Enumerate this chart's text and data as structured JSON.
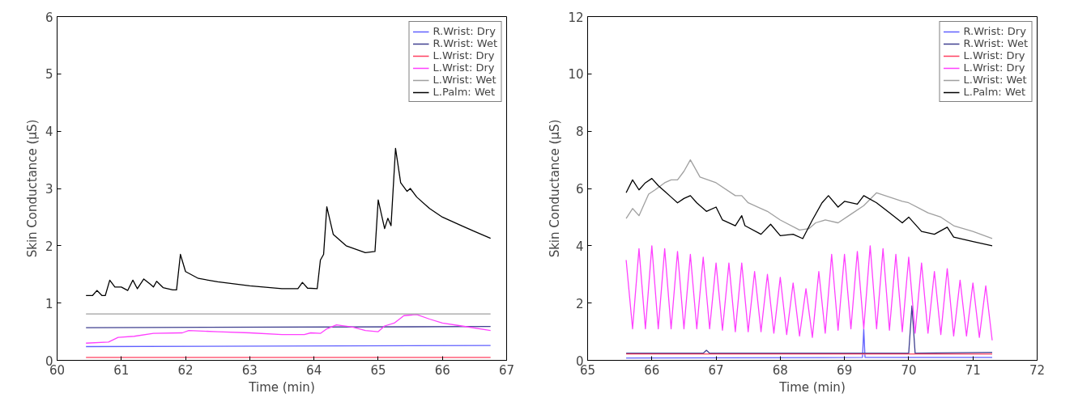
{
  "chart_data": [
    {
      "type": "line",
      "xlabel": "Time (min)",
      "ylabel": "Skin Conductance (μS)",
      "xlim": [
        60,
        67
      ],
      "ylim": [
        0,
        6
      ],
      "xticks": [
        60,
        61,
        62,
        63,
        64,
        65,
        66,
        67
      ],
      "yticks": [
        0,
        1,
        2,
        3,
        4,
        5,
        6
      ],
      "legend": "top right",
      "grid": false,
      "series": [
        {
          "name": "R.Wrist: Dry",
          "color": "#6060ff",
          "x": [
            60.45,
            66.75
          ],
          "values": [
            0.24,
            0.26
          ]
        },
        {
          "name": "R.Wrist: Wet",
          "color": "#404090",
          "x": [
            60.45,
            66.75
          ],
          "values": [
            0.57,
            0.59
          ]
        },
        {
          "name": "L.Wrist: Dry",
          "color": "#ff4060",
          "x": [
            60.45,
            66.75
          ],
          "values": [
            0.05,
            0.05
          ]
        },
        {
          "name": "L.Wrist: Dry",
          "color": "#ff40ff",
          "x": [
            60.45,
            60.8,
            60.95,
            61.2,
            61.5,
            61.95,
            62.05,
            62.5,
            63.0,
            63.5,
            63.85,
            63.95,
            64.1,
            64.2,
            64.35,
            64.6,
            64.8,
            65.0,
            65.1,
            65.25,
            65.4,
            65.6,
            65.8,
            66.0,
            66.3,
            66.75
          ],
          "values": [
            0.3,
            0.32,
            0.4,
            0.42,
            0.47,
            0.48,
            0.52,
            0.5,
            0.48,
            0.45,
            0.45,
            0.48,
            0.47,
            0.55,
            0.62,
            0.58,
            0.52,
            0.5,
            0.6,
            0.65,
            0.78,
            0.8,
            0.72,
            0.65,
            0.6,
            0.52
          ]
        },
        {
          "name": "L.Wrist: Wet",
          "color": "#a0a0a0",
          "x": [
            60.45,
            66.75
          ],
          "values": [
            0.81,
            0.81
          ]
        },
        {
          "name": "L.Palm: Wet",
          "color": "#000000",
          "x": [
            60.45,
            60.55,
            60.62,
            60.7,
            60.75,
            60.82,
            60.9,
            61.0,
            61.1,
            61.18,
            61.25,
            61.35,
            61.45,
            61.5,
            61.55,
            61.65,
            61.8,
            61.86,
            61.92,
            62.0,
            62.2,
            62.5,
            63.0,
            63.5,
            63.75,
            63.82,
            63.9,
            64.05,
            64.1,
            64.15,
            64.2,
            64.3,
            64.5,
            64.8,
            64.95,
            65.0,
            65.05,
            65.1,
            65.15,
            65.2,
            65.27,
            65.35,
            65.45,
            65.5,
            65.6,
            65.8,
            66.0,
            66.3,
            66.5,
            66.75
          ],
          "values": [
            1.13,
            1.13,
            1.22,
            1.13,
            1.13,
            1.4,
            1.28,
            1.28,
            1.22,
            1.4,
            1.25,
            1.42,
            1.33,
            1.28,
            1.38,
            1.27,
            1.23,
            1.23,
            1.85,
            1.55,
            1.43,
            1.37,
            1.3,
            1.25,
            1.25,
            1.36,
            1.26,
            1.25,
            1.75,
            1.85,
            2.68,
            2.2,
            2.0,
            1.88,
            1.9,
            2.8,
            2.55,
            2.3,
            2.48,
            2.35,
            3.7,
            3.1,
            2.95,
            3.0,
            2.85,
            2.65,
            2.5,
            2.35,
            2.25,
            2.13
          ]
        }
      ]
    },
    {
      "type": "line",
      "xlabel": "Time (min)",
      "ylabel": "Skin Conductance (μS)",
      "xlim": [
        65,
        72
      ],
      "ylim": [
        0,
        12
      ],
      "xticks": [
        65,
        66,
        67,
        68,
        69,
        70,
        71,
        72
      ],
      "yticks": [
        0,
        2,
        4,
        6,
        8,
        10,
        12
      ],
      "legend": "top right",
      "grid": false,
      "series": [
        {
          "name": "R.Wrist: Dry",
          "color": "#6060ff",
          "x": [
            65.6,
            69.28,
            69.3,
            69.32,
            71.3
          ],
          "values": [
            0.08,
            0.1,
            1.1,
            0.1,
            0.1
          ]
        },
        {
          "name": "R.Wrist: Wet",
          "color": "#404090",
          "x": [
            65.6,
            66.8,
            66.85,
            66.9,
            70.0,
            70.05,
            70.1,
            71.3
          ],
          "values": [
            0.25,
            0.25,
            0.35,
            0.25,
            0.25,
            1.9,
            0.25,
            0.28
          ]
        },
        {
          "name": "L.Wrist: Dry",
          "color": "#ff4060",
          "x": [
            65.6,
            71.3
          ],
          "values": [
            0.22,
            0.22
          ]
        },
        {
          "name": "L.Wrist: Dry",
          "color": "#ff40ff",
          "x": [
            65.6,
            65.7,
            65.8,
            65.9,
            66.0,
            66.1,
            66.2,
            66.3,
            66.4,
            66.5,
            66.6,
            66.7,
            66.8,
            66.9,
            67.0,
            67.1,
            67.2,
            67.3,
            67.4,
            67.5,
            67.6,
            67.7,
            67.8,
            67.9,
            68.0,
            68.1,
            68.2,
            68.3,
            68.4,
            68.5,
            68.6,
            68.7,
            68.8,
            68.9,
            69.0,
            69.1,
            69.2,
            69.3,
            69.4,
            69.5,
            69.6,
            69.7,
            69.8,
            69.9,
            70.0,
            70.1,
            70.2,
            70.3,
            70.4,
            70.5,
            70.6,
            70.7,
            70.8,
            70.9,
            71.0,
            71.1,
            71.2,
            71.3
          ],
          "values": [
            3.5,
            1.1,
            3.9,
            1.1,
            4.0,
            1.1,
            3.9,
            1.1,
            3.8,
            1.1,
            3.7,
            1.1,
            3.6,
            1.1,
            3.4,
            1.05,
            3.4,
            1.0,
            3.4,
            1.0,
            3.1,
            1.0,
            3.0,
            0.95,
            2.9,
            0.9,
            2.7,
            0.85,
            2.5,
            0.8,
            3.1,
            0.95,
            3.7,
            1.05,
            3.7,
            1.1,
            3.8,
            1.1,
            4.0,
            1.1,
            3.9,
            1.05,
            3.7,
            1.0,
            3.6,
            0.95,
            3.4,
            0.95,
            3.1,
            0.9,
            3.2,
            0.85,
            2.8,
            0.85,
            2.7,
            0.8,
            2.6,
            0.7
          ]
        },
        {
          "name": "L.Wrist: Wet",
          "color": "#a0a0a0",
          "x": [
            65.6,
            65.7,
            65.8,
            65.95,
            66.05,
            66.2,
            66.3,
            66.4,
            66.5,
            66.6,
            66.65,
            66.75,
            67.0,
            67.3,
            67.4,
            67.5,
            67.8,
            68.0,
            68.3,
            68.45,
            68.55,
            68.7,
            68.9,
            69.1,
            69.3,
            69.5,
            69.7,
            69.9,
            70.0,
            70.3,
            70.5,
            70.7,
            71.0,
            71.3
          ],
          "values": [
            4.95,
            5.3,
            5.05,
            5.8,
            5.95,
            6.2,
            6.3,
            6.3,
            6.6,
            7.0,
            6.8,
            6.4,
            6.2,
            5.75,
            5.75,
            5.5,
            5.2,
            4.9,
            4.55,
            4.6,
            4.8,
            4.9,
            4.8,
            5.1,
            5.4,
            5.85,
            5.7,
            5.55,
            5.5,
            5.15,
            5.0,
            4.7,
            4.5,
            4.25
          ]
        },
        {
          "name": "L.Palm: Wet",
          "color": "#000000",
          "x": [
            65.6,
            65.7,
            65.8,
            65.9,
            66.0,
            66.1,
            66.2,
            66.3,
            66.4,
            66.5,
            66.6,
            66.7,
            66.85,
            67.0,
            67.1,
            67.3,
            67.4,
            67.45,
            67.7,
            67.85,
            68.0,
            68.2,
            68.35,
            68.5,
            68.65,
            68.75,
            68.9,
            69.0,
            69.2,
            69.3,
            69.5,
            69.7,
            69.9,
            70.0,
            70.2,
            70.4,
            70.6,
            70.7,
            71.0,
            71.3
          ],
          "values": [
            5.85,
            6.3,
            5.95,
            6.2,
            6.35,
            6.1,
            5.9,
            5.7,
            5.5,
            5.65,
            5.75,
            5.5,
            5.2,
            5.35,
            4.9,
            4.7,
            5.05,
            4.7,
            4.4,
            4.75,
            4.35,
            4.4,
            4.25,
            4.9,
            5.5,
            5.75,
            5.35,
            5.55,
            5.45,
            5.75,
            5.5,
            5.15,
            4.8,
            5.0,
            4.5,
            4.4,
            4.65,
            4.3,
            4.15,
            4.0
          ]
        }
      ]
    }
  ]
}
